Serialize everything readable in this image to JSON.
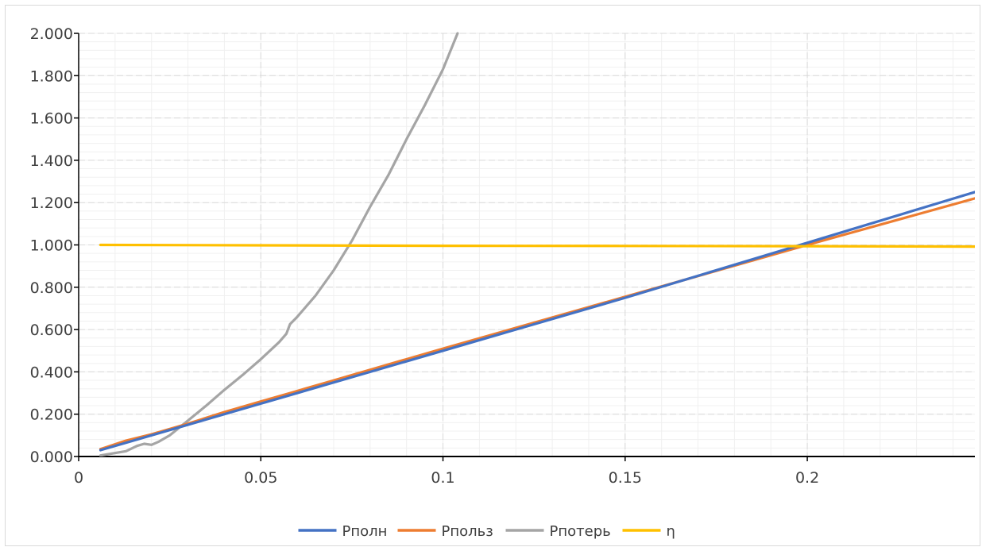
{
  "chart_data": {
    "type": "line",
    "title": "",
    "xlabel": "",
    "ylabel": "",
    "xlim": [
      0,
      0.246
    ],
    "ylim": [
      0,
      2
    ],
    "x_ticks": [
      0,
      0.05,
      0.1,
      0.15,
      0.2
    ],
    "x_tick_labels": [
      "0",
      "0.05",
      "0.1",
      "0.15",
      "0.2"
    ],
    "y_ticks": [
      0,
      0.2,
      0.4,
      0.6,
      0.8,
      1.0,
      1.2,
      1.4,
      1.6,
      1.8,
      2.0
    ],
    "y_tick_labels": [
      "0.000",
      "0.200",
      "0.400",
      "0.600",
      "0.800",
      "1.000",
      "1.200",
      "1.400",
      "1.600",
      "1.800",
      "2.000"
    ],
    "grid": true,
    "legend_position": "bottom",
    "series": [
      {
        "name": "Pполн",
        "color": "#4472c4",
        "points": [
          [
            0.006,
            0.03
          ],
          [
            0.05,
            0.25
          ],
          [
            0.1,
            0.5
          ],
          [
            0.15,
            0.75
          ],
          [
            0.2,
            1.01
          ],
          [
            0.246,
            1.25
          ]
        ]
      },
      {
        "name": "Pпольз",
        "color": "#ed7d31",
        "points": [
          [
            0.006,
            0.035
          ],
          [
            0.013,
            0.075
          ],
          [
            0.02,
            0.105
          ],
          [
            0.03,
            0.155
          ],
          [
            0.04,
            0.21
          ],
          [
            0.05,
            0.26
          ],
          [
            0.058,
            0.3
          ],
          [
            0.07,
            0.36
          ],
          [
            0.1,
            0.51
          ],
          [
            0.15,
            0.755
          ],
          [
            0.2,
            1.0
          ],
          [
            0.246,
            1.22
          ]
        ]
      },
      {
        "name": "Pпотерь",
        "color": "#a5a5a5",
        "points": [
          [
            0.006,
            0.005
          ],
          [
            0.013,
            0.025
          ],
          [
            0.016,
            0.05
          ],
          [
            0.018,
            0.06
          ],
          [
            0.02,
            0.055
          ],
          [
            0.022,
            0.07
          ],
          [
            0.025,
            0.1
          ],
          [
            0.03,
            0.17
          ],
          [
            0.035,
            0.24
          ],
          [
            0.04,
            0.315
          ],
          [
            0.045,
            0.385
          ],
          [
            0.05,
            0.46
          ],
          [
            0.055,
            0.54
          ],
          [
            0.057,
            0.58
          ],
          [
            0.058,
            0.625
          ],
          [
            0.06,
            0.66
          ],
          [
            0.065,
            0.76
          ],
          [
            0.07,
            0.88
          ],
          [
            0.075,
            1.02
          ],
          [
            0.08,
            1.18
          ],
          [
            0.085,
            1.33
          ],
          [
            0.09,
            1.5
          ],
          [
            0.095,
            1.66
          ],
          [
            0.1,
            1.83
          ],
          [
            0.104,
            2.0
          ]
        ]
      },
      {
        "name": "η",
        "color": "#ffc000",
        "points": [
          [
            0.006,
            1.0
          ],
          [
            0.05,
            0.998
          ],
          [
            0.1,
            0.996
          ],
          [
            0.15,
            0.995
          ],
          [
            0.2,
            0.994
          ],
          [
            0.246,
            0.992
          ]
        ]
      }
    ]
  }
}
